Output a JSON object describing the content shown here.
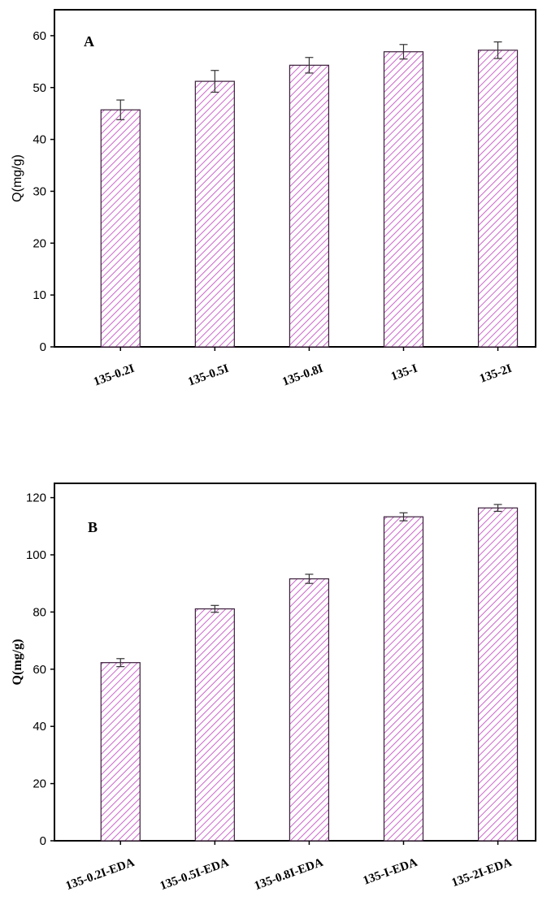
{
  "chart_data": [
    {
      "type": "bar",
      "panel_label": "A",
      "ylabel": "Q(mg/g)",
      "ylim": [
        0,
        65
      ],
      "yticks": [
        0,
        10,
        20,
        30,
        40,
        50,
        60
      ],
      "categories": [
        "135-0.2I",
        "135-0.5I",
        "135-0.8I",
        "135-I",
        "135-2I"
      ],
      "values": [
        45.7,
        51.2,
        54.3,
        56.9,
        57.2
      ],
      "errors": [
        1.9,
        2.1,
        1.5,
        1.4,
        1.6
      ],
      "bar_color": "#cc66cc",
      "bar_pattern": "diagonal-hatch",
      "grid": false
    },
    {
      "type": "bar",
      "panel_label": "B",
      "ylabel": "Q(mg/g)",
      "ylim": [
        0,
        125
      ],
      "yticks": [
        0,
        20,
        40,
        60,
        80,
        100,
        120
      ],
      "categories": [
        "135-0.2I-EDA",
        "135-0.5I-EDA",
        "135-0.8I-EDA",
        "135-I-EDA",
        "135-2I-EDA"
      ],
      "values": [
        62.3,
        81.1,
        91.6,
        113.3,
        116.4
      ],
      "errors": [
        1.4,
        1.2,
        1.6,
        1.4,
        1.2
      ],
      "bar_color": "#cc66cc",
      "bar_pattern": "diagonal-hatch",
      "grid": false
    }
  ]
}
